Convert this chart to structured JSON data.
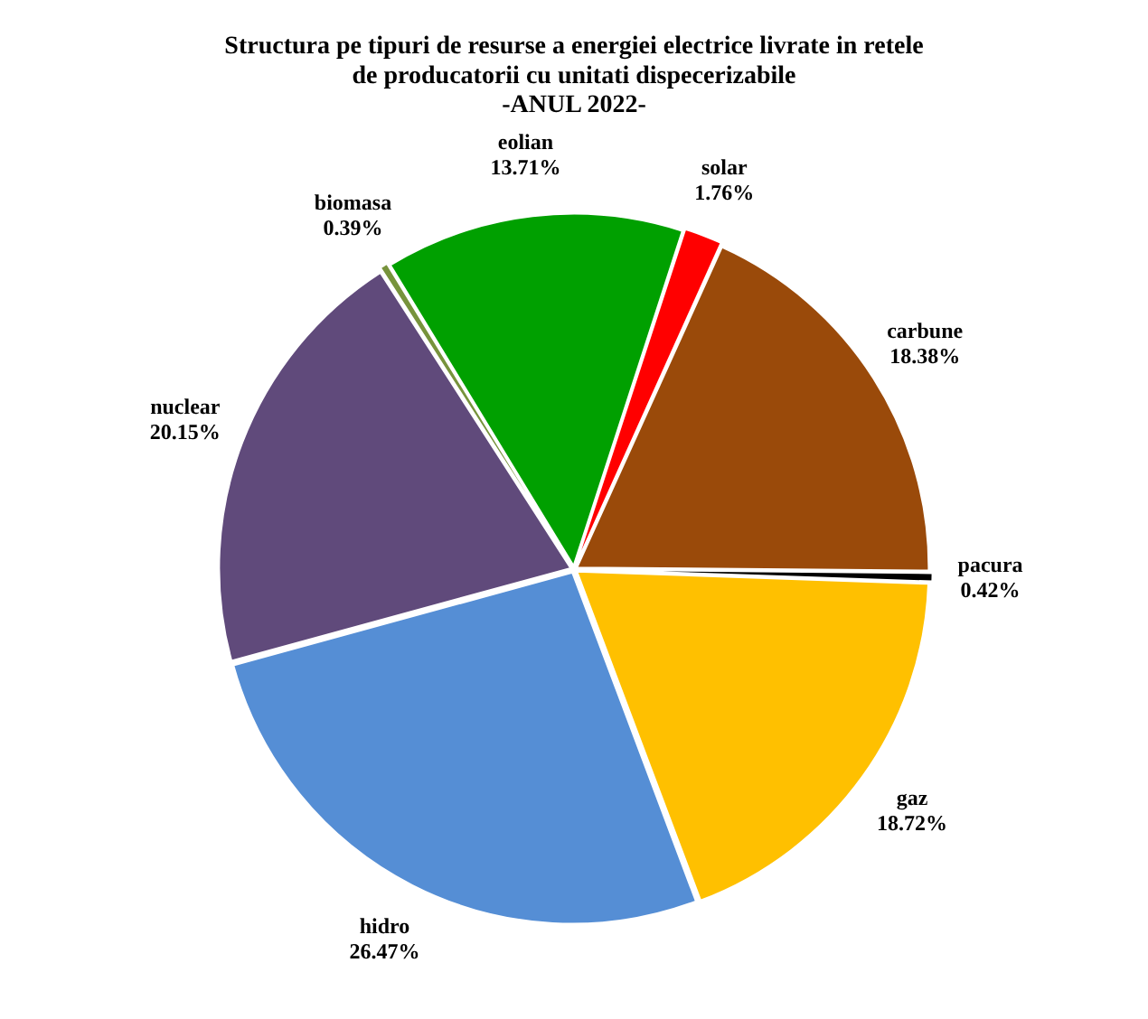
{
  "chart_data": {
    "type": "pie",
    "title": "Structura pe tipuri de resurse a energiei electrice livrate in retele\nde producatorii cu unitati dispecerizabile\n-ANUL 2022-",
    "categories": [
      "solar",
      "carbune",
      "pacura",
      "gaz",
      "hidro",
      "nuclear",
      "biomasa",
      "eolian"
    ],
    "values": [
      1.76,
      18.38,
      0.42,
      18.72,
      26.47,
      20.15,
      0.39,
      13.71
    ],
    "value_labels": [
      "1.76%",
      "18.38%",
      "0.42%",
      "18.72%",
      "26.47%",
      "20.15%",
      "0.39%",
      "13.71%"
    ],
    "colors": [
      "#ff0000",
      "#9a4a0a",
      "#000000",
      "#ffc000",
      "#558ed5",
      "#604a7b",
      "#77933c",
      "#00a000"
    ],
    "legend": false
  }
}
